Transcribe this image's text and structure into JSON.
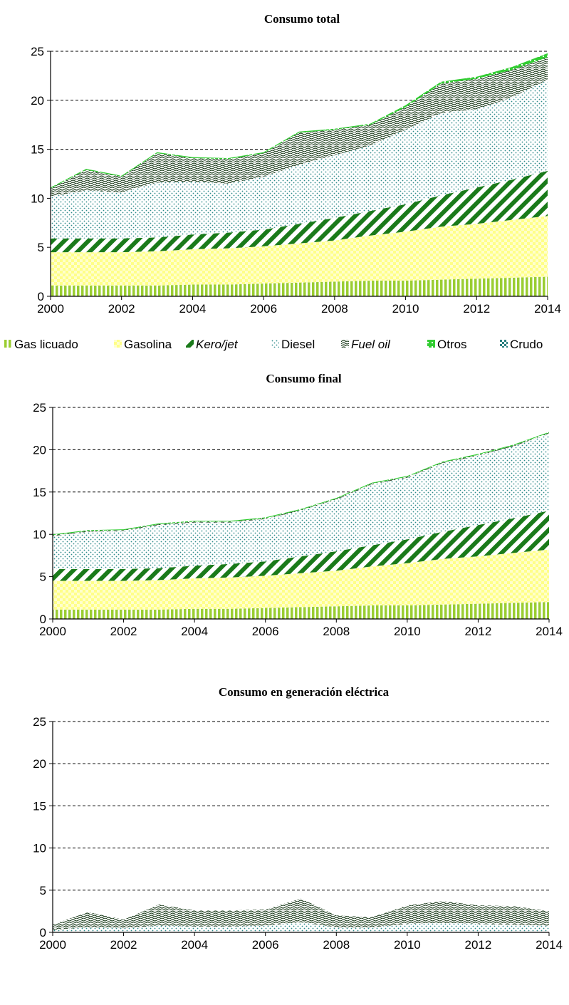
{
  "legend": [
    {
      "label": "Gas licuado",
      "italic": false,
      "pattern": "p-gas"
    },
    {
      "label": "Gasolina",
      "italic": false,
      "pattern": "p-gasolina"
    },
    {
      "label": "Kero/jet",
      "italic": true,
      "pattern": "p-kero"
    },
    {
      "label": "Diesel",
      "italic": false,
      "pattern": "p-diesel"
    },
    {
      "label": "Fuel oil",
      "italic": true,
      "pattern": "p-fuel"
    },
    {
      "label": "Otros",
      "italic": false,
      "pattern": "p-otros"
    },
    {
      "label": "Crudo",
      "italic": false,
      "pattern": "p-crudo"
    }
  ],
  "colors": {
    "gas_licuado": "#9acd32",
    "gasolina": "#ffff99",
    "kero_jet": "#1a7a1a",
    "diesel": "#2e8b8b",
    "fuel_oil": "#1f3f1f",
    "otros": "#32cd32",
    "crudo": "#2a8080",
    "grid": "#000000"
  },
  "chart_data": [
    {
      "type": "area",
      "stacked": true,
      "title": "Consumo total",
      "xlim": [
        2000,
        2014
      ],
      "ylim": [
        0,
        25
      ],
      "xticks": [
        "2000",
        "2002",
        "2004",
        "2006",
        "2008",
        "2010",
        "2012",
        "2014"
      ],
      "yticks": [
        "0",
        "5",
        "10",
        "15",
        "20",
        "25"
      ],
      "grid": "horizontal dashed",
      "x": [
        2000,
        2001,
        2002,
        2003,
        2004,
        2005,
        2006,
        2007,
        2008,
        2009,
        2010,
        2011,
        2012,
        2013,
        2014
      ],
      "series": [
        {
          "name": "Gas licuado",
          "values": [
            1.1,
            1.1,
            1.1,
            1.1,
            1.2,
            1.2,
            1.3,
            1.4,
            1.5,
            1.6,
            1.6,
            1.7,
            1.8,
            1.9,
            2.0
          ]
        },
        {
          "name": "Gasolina",
          "values": [
            3.4,
            3.4,
            3.4,
            3.5,
            3.6,
            3.7,
            3.8,
            4.0,
            4.2,
            4.6,
            5.0,
            5.4,
            5.6,
            5.9,
            6.2
          ]
        },
        {
          "name": "Kero/jet",
          "values": [
            1.4,
            1.4,
            1.4,
            1.4,
            1.5,
            1.6,
            1.7,
            2.0,
            2.3,
            2.5,
            2.8,
            3.2,
            3.7,
            4.1,
            4.6
          ]
        },
        {
          "name": "Diesel",
          "values": [
            4.3,
            4.9,
            4.7,
            5.6,
            5.4,
            5.0,
            5.4,
            6.0,
            6.4,
            6.7,
            7.6,
            8.4,
            8.0,
            8.4,
            9.3
          ]
        },
        {
          "name": "Fuel oil",
          "values": [
            0.8,
            2.1,
            1.6,
            3.0,
            2.4,
            2.5,
            2.4,
            3.3,
            2.6,
            2.1,
            2.3,
            3.0,
            3.1,
            2.8,
            2.3
          ]
        },
        {
          "name": "Otros",
          "values": [
            0.1,
            0.1,
            0.1,
            0.1,
            0.1,
            0.1,
            0.1,
            0.1,
            0.1,
            0.1,
            0.2,
            0.2,
            0.2,
            0.3,
            0.4
          ]
        },
        {
          "name": "Crudo",
          "values": [
            0,
            0,
            0,
            0,
            0,
            0,
            0,
            0,
            0,
            0,
            0,
            0,
            0,
            0,
            0
          ]
        }
      ]
    },
    {
      "type": "area",
      "stacked": true,
      "title": "Consumo final",
      "xlim": [
        2000,
        2014
      ],
      "ylim": [
        0,
        25
      ],
      "xticks": [
        "2000",
        "2002",
        "2004",
        "2006",
        "2008",
        "2010",
        "2012",
        "2014"
      ],
      "yticks": [
        "0",
        "5",
        "10",
        "15",
        "20",
        "25"
      ],
      "grid": "horizontal dashed",
      "x": [
        2000,
        2001,
        2002,
        2003,
        2004,
        2005,
        2006,
        2007,
        2008,
        2009,
        2010,
        2011,
        2012,
        2013,
        2014
      ],
      "series": [
        {
          "name": "Gas licuado",
          "values": [
            1.1,
            1.1,
            1.1,
            1.1,
            1.2,
            1.2,
            1.3,
            1.4,
            1.5,
            1.6,
            1.6,
            1.7,
            1.8,
            1.9,
            2.0
          ]
        },
        {
          "name": "Gasolina",
          "values": [
            3.4,
            3.4,
            3.4,
            3.5,
            3.6,
            3.7,
            3.8,
            4.0,
            4.2,
            4.6,
            5.0,
            5.4,
            5.6,
            5.9,
            6.2
          ]
        },
        {
          "name": "Kero/jet",
          "values": [
            1.4,
            1.4,
            1.4,
            1.4,
            1.5,
            1.6,
            1.7,
            2.0,
            2.3,
            2.5,
            2.8,
            3.2,
            3.7,
            4.1,
            4.6
          ]
        },
        {
          "name": "Diesel",
          "values": [
            3.9,
            4.4,
            4.5,
            5.1,
            5.1,
            4.9,
            5.0,
            5.4,
            6.1,
            7.2,
            7.3,
            8.1,
            8.2,
            8.5,
            9.1
          ]
        },
        {
          "name": "Fuel oil",
          "values": [
            0.1,
            0.1,
            0.1,
            0.1,
            0.1,
            0.1,
            0.1,
            0.1,
            0.1,
            0.1,
            0.1,
            0.1,
            0.1,
            0.1,
            0.1
          ]
        },
        {
          "name": "Otros",
          "values": [
            0.1,
            0.1,
            0.1,
            0.1,
            0.1,
            0.1,
            0.1,
            0.1,
            0.1,
            0.1,
            0.1,
            0.1,
            0.1,
            0.1,
            0.1
          ]
        },
        {
          "name": "Crudo",
          "values": [
            0,
            0,
            0,
            0,
            0,
            0,
            0,
            0,
            0,
            0,
            0,
            0,
            0,
            0,
            0
          ]
        }
      ]
    },
    {
      "type": "area",
      "stacked": true,
      "title": "Consumo en generación eléctrica",
      "xlim": [
        2000,
        2014
      ],
      "ylim": [
        0,
        25
      ],
      "xticks": [
        "2000",
        "2002",
        "2004",
        "2006",
        "2008",
        "2010",
        "2012",
        "2014"
      ],
      "yticks": [
        "0",
        "5",
        "10",
        "15",
        "20",
        "25"
      ],
      "grid": "horizontal dashed",
      "x": [
        2000,
        2001,
        2002,
        2003,
        2004,
        2005,
        2006,
        2007,
        2008,
        2009,
        2010,
        2011,
        2012,
        2013,
        2014
      ],
      "series": [
        {
          "name": "Gas licuado",
          "values": [
            0,
            0,
            0,
            0,
            0,
            0,
            0,
            0,
            0,
            0,
            0,
            0,
            0,
            0,
            0
          ]
        },
        {
          "name": "Gasolina",
          "values": [
            0,
            0,
            0,
            0,
            0,
            0,
            0,
            0,
            0,
            0,
            0,
            0,
            0,
            0,
            0
          ]
        },
        {
          "name": "Kero/jet",
          "values": [
            0,
            0,
            0,
            0,
            0,
            0,
            0,
            0,
            0,
            0,
            0,
            0,
            0,
            0,
            0
          ]
        },
        {
          "name": "Diesel",
          "values": [
            0.3,
            0.6,
            0.5,
            0.8,
            0.7,
            0.7,
            0.8,
            1.2,
            0.6,
            0.6,
            1.0,
            1.1,
            1.0,
            0.9,
            0.8
          ]
        },
        {
          "name": "Fuel oil",
          "values": [
            0.6,
            1.8,
            1.0,
            2.5,
            1.9,
            1.9,
            1.9,
            2.8,
            1.4,
            1.2,
            2.2,
            2.6,
            2.2,
            2.2,
            1.7
          ]
        },
        {
          "name": "Otros",
          "values": [
            0,
            0,
            0,
            0,
            0,
            0,
            0,
            0,
            0,
            0,
            0,
            0,
            0,
            0,
            0
          ]
        },
        {
          "name": "Crudo",
          "values": [
            0,
            0,
            0,
            0,
            0,
            0,
            0,
            0,
            0,
            0,
            0,
            0,
            0,
            0,
            0
          ]
        }
      ]
    }
  ]
}
